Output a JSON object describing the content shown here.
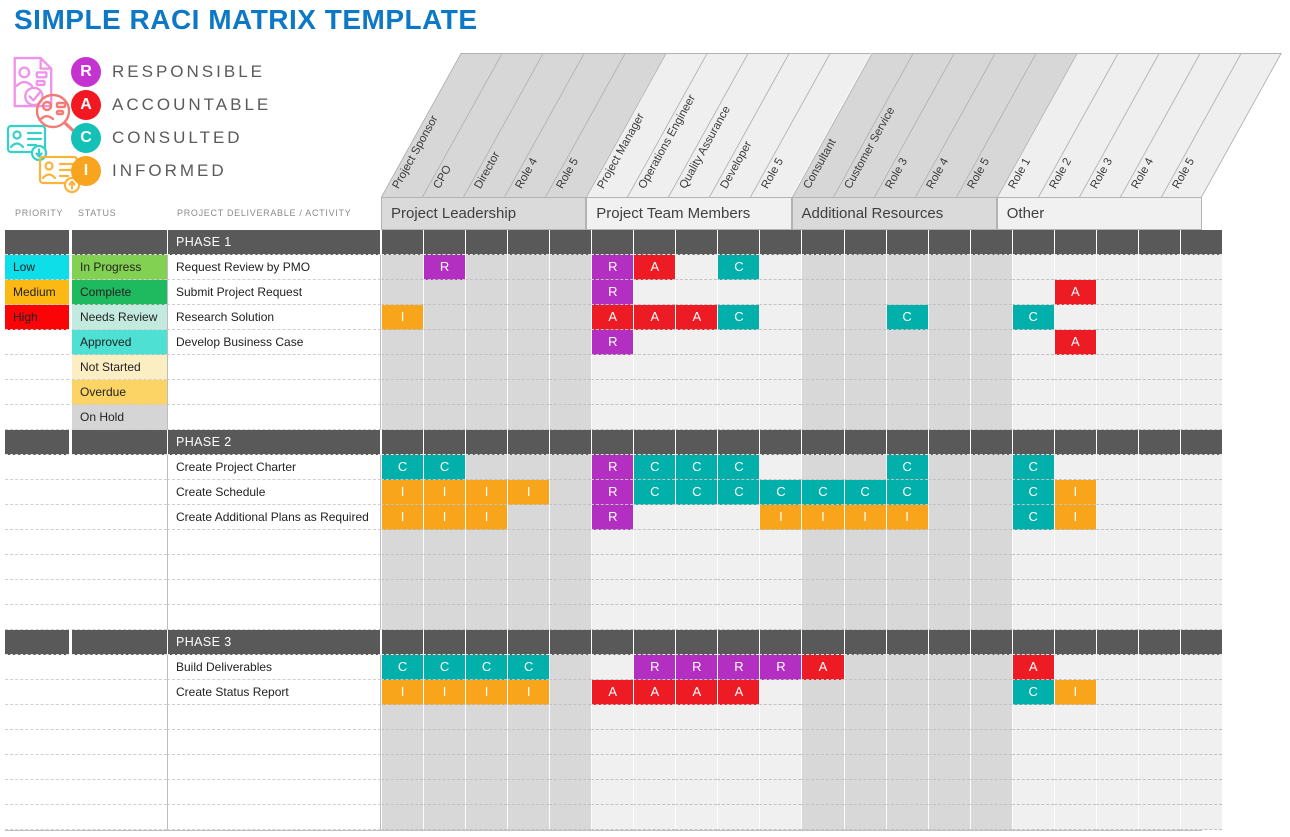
{
  "title": "SIMPLE RACI MATRIX TEMPLATE",
  "title_color": "#0d79c6",
  "legend": {
    "items": [
      {
        "letter": "R",
        "label": "RESPONSIBLE",
        "color": "#c433d0"
      },
      {
        "letter": "A",
        "label": "ACCOUNTABLE",
        "color": "#f31722"
      },
      {
        "letter": "C",
        "label": "CONSULTED",
        "color": "#13c1b7"
      },
      {
        "letter": "I",
        "label": "INFORMED",
        "color": "#f8a41f"
      }
    ]
  },
  "left_headers": {
    "priority": "PRIORITY",
    "status": "STATUS",
    "deliverable": "PROJECT DELIVERABLE / ACTIVITY"
  },
  "role_groups": [
    {
      "label": "Project Leadership",
      "shade": "dark",
      "roles": [
        "Project Sponsor",
        "CPO",
        "Director",
        "Role 4",
        "Role 5"
      ]
    },
    {
      "label": "Project Team Members",
      "shade": "light",
      "roles": [
        "Project Manager",
        "Operations Engineer",
        "Quality Assurance",
        "Developer",
        "Role 5"
      ]
    },
    {
      "label": "Additional Resources",
      "shade": "dark",
      "roles": [
        "Consultant",
        "Customer Service",
        "Role 3",
        "Role 4",
        "Role 5"
      ]
    },
    {
      "label": "Other",
      "shade": "light",
      "roles": [
        "Role 1",
        "Role 2",
        "Role 3",
        "Role 4",
        "Role 5"
      ]
    }
  ],
  "mark_colors": {
    "R": "#b32fc1",
    "A": "#ed1c24",
    "C": "#01b0ab",
    "I": "#f9a51b"
  },
  "phase_bar_color": "#595959",
  "phases": [
    {
      "name": "PHASE 1",
      "rows": [
        {
          "priority": {
            "label": "Low",
            "color": "#0ddee8"
          },
          "status": {
            "label": "In Progress",
            "color": "#83d152"
          },
          "activity": "Request Review by PMO",
          "marks": {
            "2": "R",
            "6": "R",
            "7": "A",
            "9": "C"
          }
        },
        {
          "priority": {
            "label": "Medium",
            "color": "#fdb913"
          },
          "status": {
            "label": "Complete",
            "color": "#1fb95f"
          },
          "activity": "Submit Project Request",
          "marks": {
            "6": "R",
            "17": "A"
          }
        },
        {
          "priority": {
            "label": "High",
            "color": "#fb0407"
          },
          "status": {
            "label": "Needs Review",
            "color": "#c3eade"
          },
          "activity": "Research Solution",
          "marks": {
            "1": "I",
            "6": "A",
            "7": "A",
            "8": "A",
            "9": "C",
            "13": "C",
            "16": "C"
          }
        },
        {
          "priority": null,
          "status": {
            "label": "Approved",
            "color": "#4ee0d2"
          },
          "activity": "Develop Business Case",
          "marks": {
            "6": "R",
            "17": "A"
          }
        },
        {
          "priority": null,
          "status": {
            "label": "Not Started",
            "color": "#fbeec3"
          },
          "activity": "",
          "marks": {}
        },
        {
          "priority": null,
          "status": {
            "label": "Overdue",
            "color": "#fcd465"
          },
          "activity": "",
          "marks": {}
        },
        {
          "priority": null,
          "status": {
            "label": "On Hold",
            "color": "#d5d5d5"
          },
          "activity": "",
          "marks": {}
        }
      ]
    },
    {
      "name": "PHASE 2",
      "rows": [
        {
          "priority": null,
          "status": null,
          "activity": "Create Project Charter",
          "marks": {
            "1": "C",
            "2": "C",
            "6": "R",
            "7": "C",
            "8": "C",
            "9": "C",
            "13": "C",
            "16": "C"
          }
        },
        {
          "priority": null,
          "status": null,
          "activity": "Create Schedule",
          "marks": {
            "1": "I",
            "2": "I",
            "3": "I",
            "4": "I",
            "6": "R",
            "7": "C",
            "8": "C",
            "9": "C",
            "10": "C",
            "11": "C",
            "12": "C",
            "13": "C",
            "16": "C",
            "17": "I"
          }
        },
        {
          "priority": null,
          "status": null,
          "activity": "Create Additional Plans as Required",
          "marks": {
            "1": "I",
            "2": "I",
            "3": "I",
            "6": "R",
            "10": "I",
            "11": "I",
            "12": "I",
            "13": "I",
            "16": "C",
            "17": "I"
          }
        },
        {
          "priority": null,
          "status": null,
          "activity": "",
          "marks": {}
        },
        {
          "priority": null,
          "status": null,
          "activity": "",
          "marks": {}
        },
        {
          "priority": null,
          "status": null,
          "activity": "",
          "marks": {}
        },
        {
          "priority": null,
          "status": null,
          "activity": "",
          "marks": {}
        }
      ]
    },
    {
      "name": "PHASE 3",
      "rows": [
        {
          "priority": null,
          "status": null,
          "activity": "Build Deliverables",
          "marks": {
            "1": "C",
            "2": "C",
            "3": "C",
            "4": "C",
            "7": "R",
            "8": "R",
            "9": "R",
            "10": "R",
            "11": "A",
            "16": "A"
          }
        },
        {
          "priority": null,
          "status": null,
          "activity": "Create Status Report",
          "marks": {
            "1": "I",
            "2": "I",
            "3": "I",
            "4": "I",
            "6": "A",
            "7": "A",
            "8": "A",
            "9": "A",
            "16": "C",
            "17": "I"
          }
        },
        {
          "priority": null,
          "status": null,
          "activity": "",
          "marks": {}
        },
        {
          "priority": null,
          "status": null,
          "activity": "",
          "marks": {}
        },
        {
          "priority": null,
          "status": null,
          "activity": "",
          "marks": {}
        },
        {
          "priority": null,
          "status": null,
          "activity": "",
          "marks": {}
        },
        {
          "priority": null,
          "status": null,
          "activity": "",
          "marks": {}
        }
      ]
    }
  ]
}
